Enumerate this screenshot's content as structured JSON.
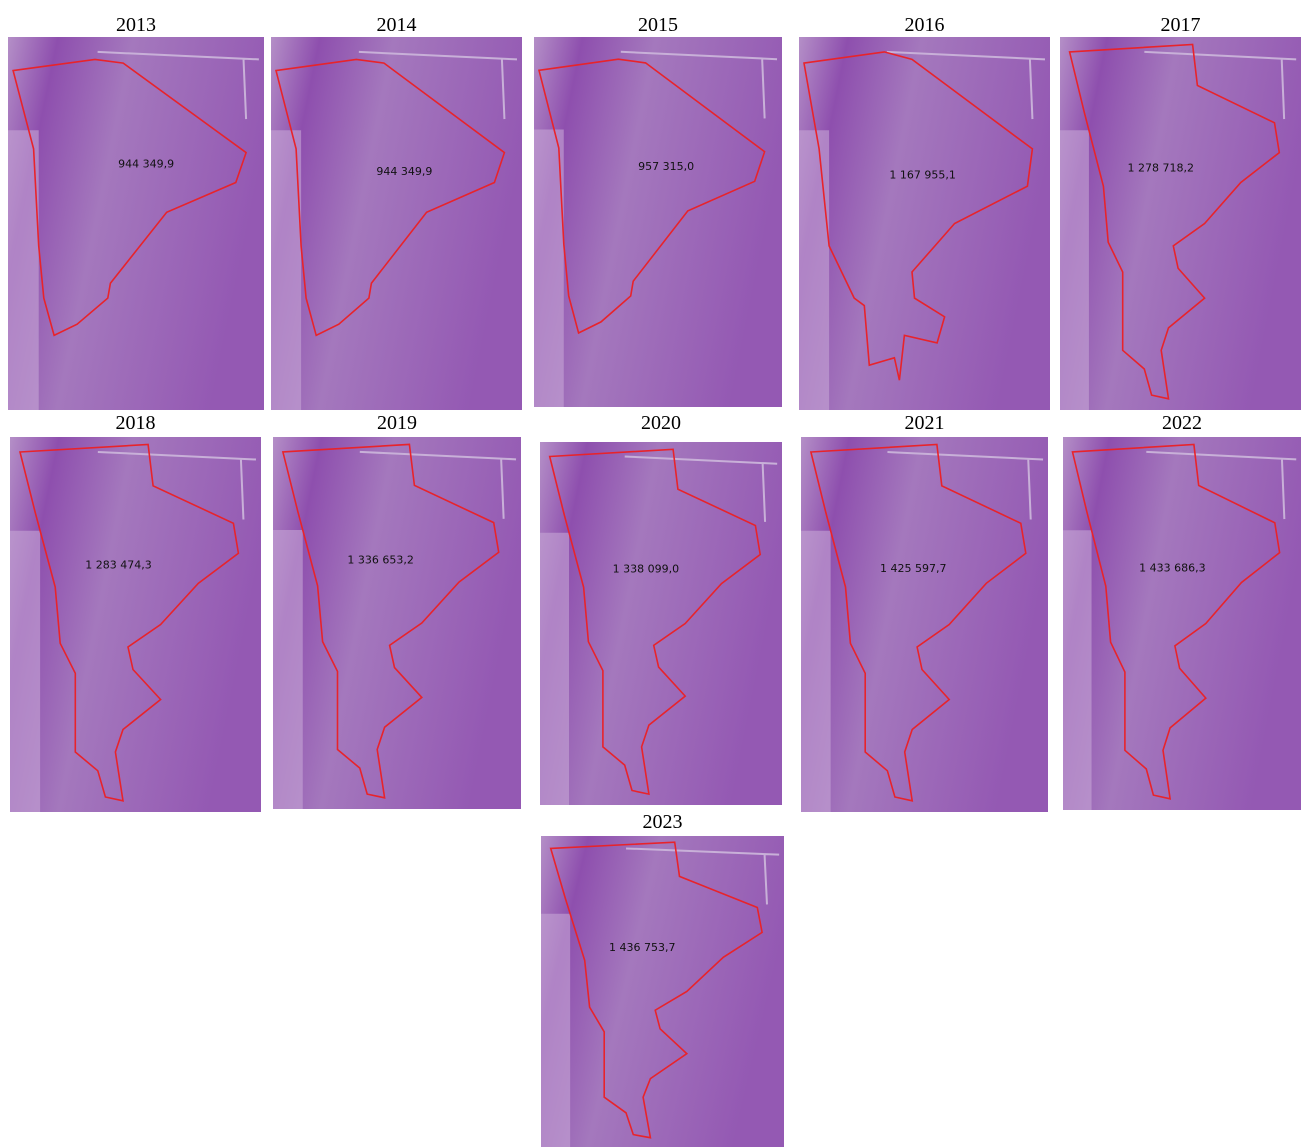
{
  "panels": [
    {
      "year": "2013",
      "area": "944 349,9"
    },
    {
      "year": "2014",
      "area": "944 349,9"
    },
    {
      "year": "2015",
      "area": "957 315,0"
    },
    {
      "year": "2016",
      "area": "1 167 955,1"
    },
    {
      "year": "2017",
      "area": "1 278 718,2"
    },
    {
      "year": "2018",
      "area": "1 283 474,3"
    },
    {
      "year": "2019",
      "area": "1 336 653,2"
    },
    {
      "year": "2020",
      "area": "1 338 099,0"
    },
    {
      "year": "2021",
      "area": "1 425 597,7"
    },
    {
      "year": "2022",
      "area": "1 433 686,3"
    },
    {
      "year": "2023",
      "area": "1 436 753,7"
    }
  ]
}
